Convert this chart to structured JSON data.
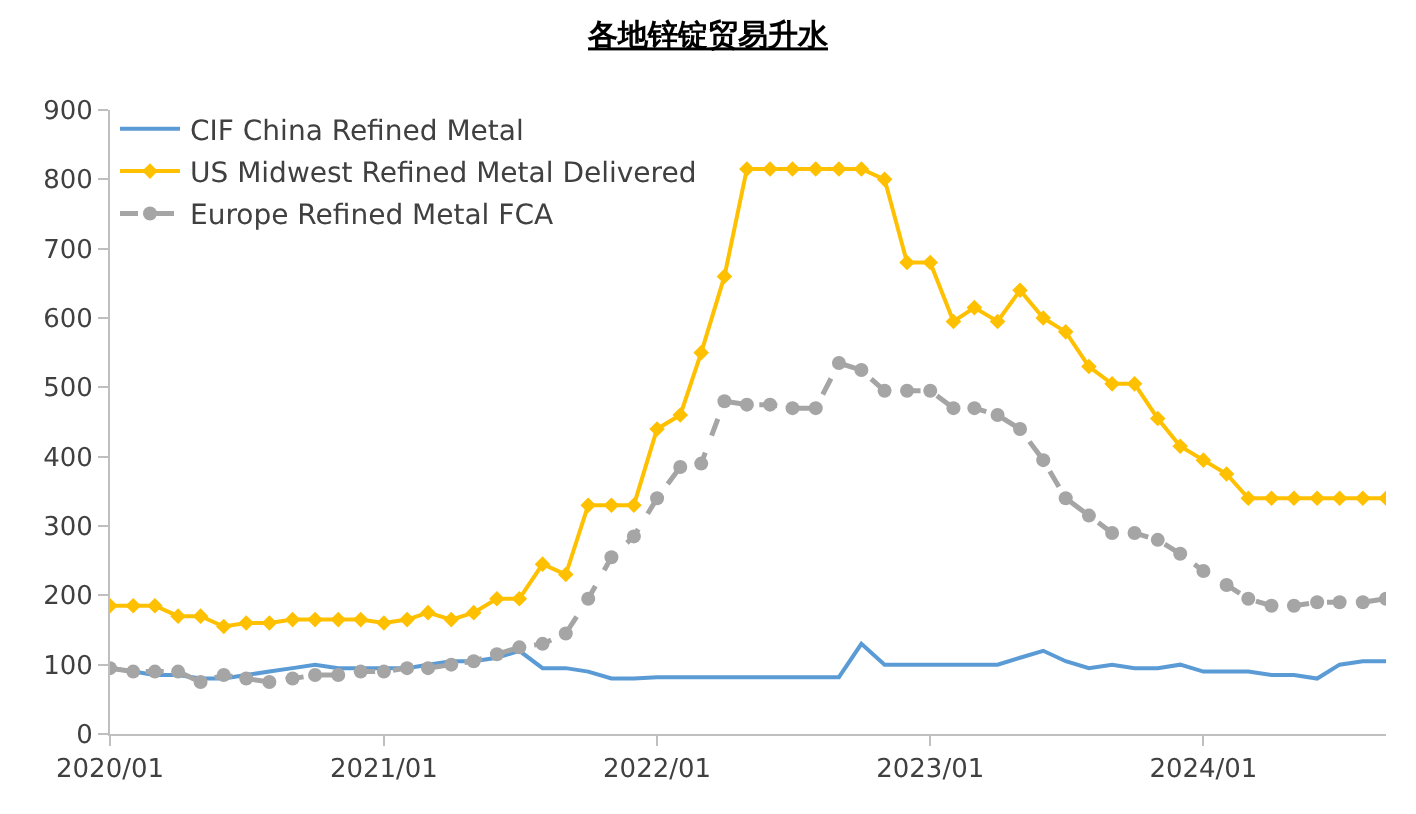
{
  "chart_data": {
    "type": "line",
    "title": "各地锌锭贸易升水",
    "x": [
      "2020-01",
      "2020-02",
      "2020-03",
      "2020-04",
      "2020-05",
      "2020-06",
      "2020-07",
      "2020-08",
      "2020-09",
      "2020-10",
      "2020-11",
      "2020-12",
      "2021-01",
      "2021-02",
      "2021-03",
      "2021-04",
      "2021-05",
      "2021-06",
      "2021-07",
      "2021-08",
      "2021-09",
      "2021-10",
      "2021-11",
      "2021-12",
      "2022-01",
      "2022-02",
      "2022-03",
      "2022-04",
      "2022-05",
      "2022-06",
      "2022-07",
      "2022-08",
      "2022-09",
      "2022-10",
      "2022-11",
      "2022-12",
      "2023-01",
      "2023-02",
      "2023-03",
      "2023-04",
      "2023-05",
      "2023-06",
      "2023-07",
      "2023-08",
      "2023-09",
      "2023-10",
      "2023-11",
      "2023-12",
      "2024-01",
      "2024-02",
      "2024-03",
      "2024-04",
      "2024-05",
      "2024-06",
      "2024-07",
      "2024-08",
      "2024-09"
    ],
    "series": [
      {
        "name": "CIF China Refined Metal",
        "color": "#5b9bd5",
        "marker": "none",
        "line_style": "solid",
        "values": [
          95,
          90,
          85,
          85,
          80,
          80,
          85,
          90,
          95,
          100,
          95,
          95,
          95,
          95,
          100,
          105,
          105,
          110,
          120,
          95,
          95,
          90,
          80,
          80,
          82,
          82,
          82,
          82,
          82,
          82,
          82,
          82,
          82,
          130,
          100,
          100,
          100,
          100,
          100,
          100,
          110,
          120,
          105,
          95,
          100,
          95,
          95,
          100,
          90,
          90,
          90,
          85,
          85,
          80,
          100,
          105,
          105
        ]
      },
      {
        "name": "US Midwest Refined Metal Delivered",
        "color": "#ffc000",
        "marker": "diamond",
        "line_style": "solid",
        "values": [
          185,
          185,
          185,
          170,
          170,
          155,
          160,
          160,
          165,
          165,
          165,
          165,
          160,
          165,
          175,
          165,
          175,
          195,
          195,
          245,
          230,
          330,
          330,
          330,
          440,
          460,
          550,
          660,
          815,
          815,
          815,
          815,
          815,
          815,
          800,
          680,
          680,
          595,
          615,
          595,
          640,
          600,
          580,
          530,
          505,
          505,
          455,
          415,
          395,
          375,
          340,
          340,
          340,
          340,
          340,
          340,
          340
        ]
      },
      {
        "name": "Europe Refined Metal FCA",
        "color": "#a5a5a5",
        "marker": "circle",
        "line_style": "dashed",
        "values": [
          95,
          90,
          90,
          90,
          75,
          85,
          80,
          75,
          80,
          85,
          85,
          90,
          90,
          95,
          95,
          100,
          105,
          115,
          125,
          130,
          145,
          195,
          255,
          285,
          340,
          385,
          390,
          480,
          475,
          475,
          470,
          470,
          535,
          525,
          495,
          495,
          495,
          470,
          470,
          460,
          440,
          395,
          340,
          315,
          290,
          290,
          280,
          260,
          235,
          215,
          195,
          185,
          185,
          190,
          190,
          190,
          195
        ]
      }
    ],
    "xlim": [
      "2020-01",
      "2024-09"
    ],
    "xticks": [
      {
        "value": "2020-01",
        "label": "2020/01"
      },
      {
        "value": "2021-01",
        "label": "2021/01"
      },
      {
        "value": "2022-01",
        "label": "2022/01"
      },
      {
        "value": "2023-01",
        "label": "2023/01"
      },
      {
        "value": "2024-01",
        "label": "2024/01"
      }
    ],
    "ylim": [
      0,
      900
    ],
    "yticks": [
      0,
      100,
      200,
      300,
      400,
      500,
      600,
      700,
      800,
      900
    ],
    "grid": false,
    "legend": "top left"
  }
}
